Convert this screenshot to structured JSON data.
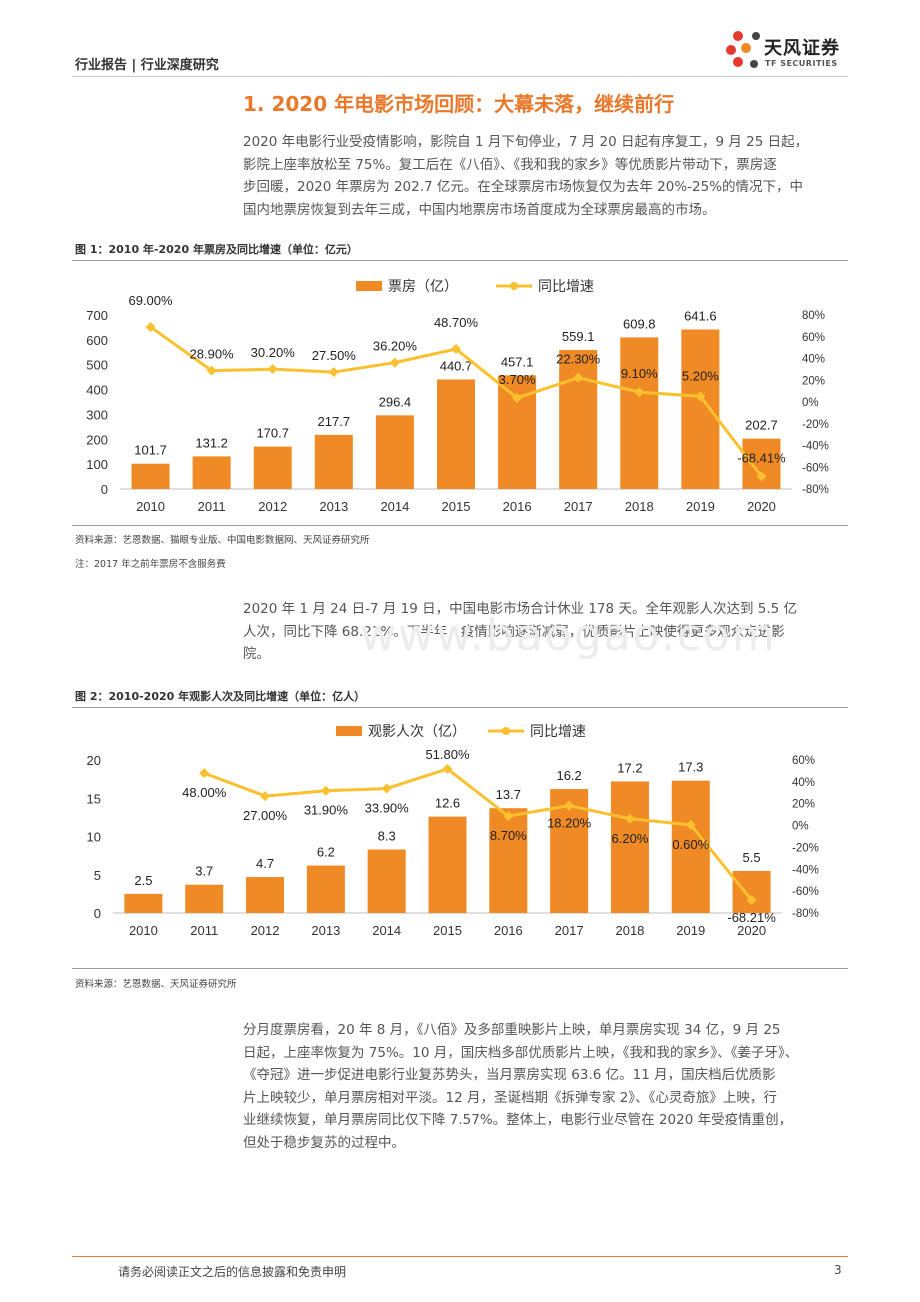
{
  "header": {
    "left": "行业报告 | 行业深度研究",
    "logo_cn": "天风证券",
    "logo_en": "TF SECURITIES"
  },
  "section_title": "1. 2020 年电影市场回顾：大幕未落，继续前行",
  "paragraphs": {
    "p1": [
      "2020 年电影行业受疫情影响，影院自 1 月下旬停业，7 月 20 日起有序复工，9 月 25 日起，",
      "影院上座率放松至 75%。复工后在《八佰》、《我和我的家乡》等优质影片带动下，票房逐",
      "步回暖，2020 年票房为 202.7 亿元。在全球票房市场恢复仅为去年 20%-25%的情况下，中",
      "国内地票房恢复到去年三成，中国内地票房市场首度成为全球票房最高的市场。"
    ],
    "p2": [
      "2020 年 1 月 24 日-7 月 19 日，中国电影市场合计休业 178 天。全年观影人次达到 5.5 亿",
      "人次，同比下降 68.21%。下半年，疫情影响逐渐减弱，优质影片上映使得更多观众走进影",
      "院。"
    ],
    "p3": [
      "分月度票房看，20 年 8 月，《八佰》及多部重映影片上映，单月票房实现 34 亿，9 月 25",
      "日起，上座率恢复为 75%。10 月，国庆档多部优质影片上映，《我和我的家乡》、《姜子牙》、",
      "《夺冠》进一步促进电影行业复苏势头，当月票房实现 63.6 亿。11 月，国庆档后优质影",
      "片上映较少，单月票房相对平淡。12 月，圣诞档期《拆弹专家 2》、《心灵奇旅》上映，行",
      "业继续恢复，单月票房同比仅下降 7.57%。整体上，电影行业尽管在 2020 年受疫情重创，",
      "但处于稳步复苏的过程中。"
    ]
  },
  "figure1": {
    "title": "图 1：2010 年-2020 年票房及同比增速（单位：亿元）",
    "source": "资料来源：艺恩数据、猫眼专业版、中国电影数据网、天风证券研究所",
    "note": "注：2017 年之前年票房不含服务费"
  },
  "figure2": {
    "title": "图 2：2010-2020 年观影人次及同比增速（单位：亿人）",
    "source": "资料来源：艺恩数据、天风证券研究所"
  },
  "watermark": "www.baogao.com",
  "footer": {
    "text": "请务必阅读正文之后的信息披露和免责申明",
    "page": "3"
  },
  "colors": {
    "bar": "#f08a24",
    "line": "#fbc02d",
    "accent": "#e9782b"
  },
  "chart_data": [
    {
      "type": "bar",
      "categories": [
        "2010",
        "2011",
        "2012",
        "2013",
        "2014",
        "2015",
        "2016",
        "2017",
        "2018",
        "2019",
        "2020"
      ],
      "series": [
        {
          "name": "票房（亿）",
          "type": "bar",
          "axis": "left",
          "values": [
            101.7,
            131.2,
            170.7,
            217.7,
            296.4,
            440.7,
            457.1,
            559.1,
            609.8,
            641.6,
            202.7
          ],
          "labels": [
            "101.7",
            "131.2",
            "170.7",
            "217.7",
            "296.4",
            "440.7",
            "457.1",
            "559.1",
            "609.8",
            "641.6",
            "202.7"
          ]
        },
        {
          "name": "同比增速",
          "type": "line",
          "axis": "right",
          "values": [
            69.0,
            28.9,
            30.2,
            27.5,
            36.2,
            48.7,
            3.7,
            22.3,
            9.1,
            5.2,
            -68.41
          ],
          "labels": [
            "69.00%",
            "28.90%",
            "30.20%",
            "27.50%",
            "36.20%",
            "48.70%",
            "3.70%",
            "22.30%",
            "9.10%",
            "5.20%",
            "-68.41%"
          ]
        }
      ],
      "ylim": [
        0,
        700
      ],
      "yticks": [
        "0",
        "100",
        "200",
        "300",
        "400",
        "500",
        "600",
        "700"
      ],
      "y2lim": [
        -80,
        80
      ],
      "y2ticks": [
        "-80%",
        "-60%",
        "-40%",
        "-20%",
        "0%",
        "20%",
        "40%",
        "60%",
        "80%"
      ],
      "legend": "top-center",
      "grid": false
    },
    {
      "type": "bar",
      "categories": [
        "2010",
        "2011",
        "2012",
        "2013",
        "2014",
        "2015",
        "2016",
        "2017",
        "2018",
        "2019",
        "2020"
      ],
      "series": [
        {
          "name": "观影人次（亿）",
          "type": "bar",
          "axis": "left",
          "values": [
            2.5,
            3.7,
            4.7,
            6.2,
            8.3,
            12.6,
            13.7,
            16.2,
            17.2,
            17.3,
            5.5
          ],
          "labels": [
            "2.5",
            "3.7",
            "4.7",
            "6.2",
            "8.3",
            "12.6",
            "13.7",
            "16.2",
            "17.2",
            "17.3",
            "5.5"
          ]
        },
        {
          "name": "同比增速",
          "type": "line",
          "axis": "right",
          "values": [
            null,
            48.0,
            27.0,
            31.9,
            33.9,
            51.8,
            8.7,
            18.2,
            6.2,
            0.6,
            -68.21
          ],
          "labels": [
            "",
            "48.00%",
            "27.00%",
            "31.90%",
            "33.90%",
            "51.80%",
            "8.70%",
            "18.20%",
            "6.20%",
            "0.60%",
            "-68.21%"
          ]
        }
      ],
      "ylim": [
        0,
        20
      ],
      "yticks": [
        "0",
        "5",
        "10",
        "15",
        "20"
      ],
      "y2lim": [
        -80,
        60
      ],
      "y2ticks": [
        "-80%",
        "-60%",
        "-40%",
        "-20%",
        "0%",
        "20%",
        "40%",
        "60%"
      ],
      "legend": "top-center",
      "grid": false
    }
  ]
}
